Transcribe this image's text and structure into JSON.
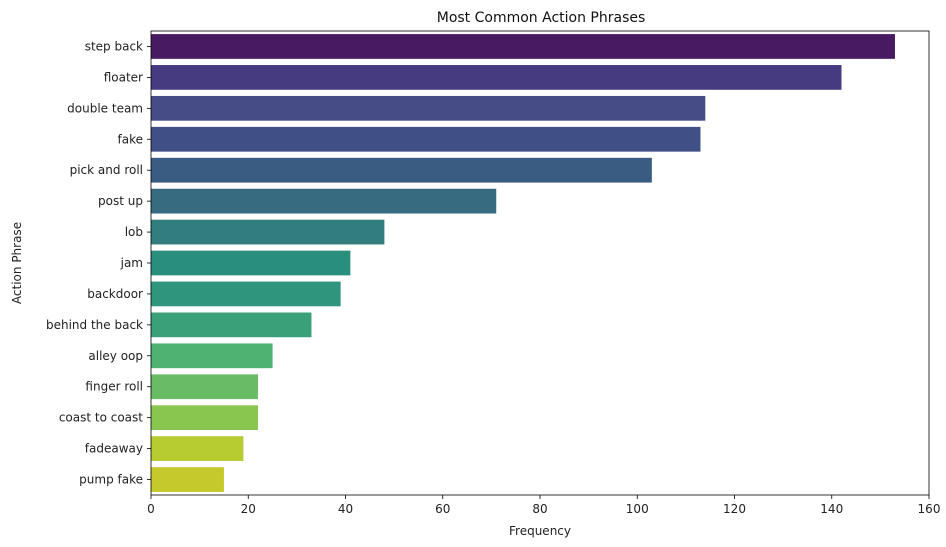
{
  "chart_data": {
    "type": "bar",
    "orientation": "horizontal",
    "title": "Most Common Action Phrases",
    "xlabel": "Frequency",
    "ylabel": "Action Phrase",
    "xlim": [
      0,
      160
    ],
    "xticks": [
      0,
      20,
      40,
      60,
      80,
      100,
      120,
      140,
      160
    ],
    "grid": false,
    "categories": [
      "step back",
      "floater",
      "double team",
      "fake",
      "pick and roll",
      "post up",
      "lob",
      "jam",
      "backdoor",
      "behind the back",
      "alley oop",
      "finger roll",
      "coast to coast",
      "fadeaway",
      "pump fake"
    ],
    "values": [
      153,
      142,
      114,
      113,
      103,
      71,
      48,
      41,
      39,
      33,
      25,
      22,
      22,
      19,
      15
    ],
    "colors": [
      "#471a61",
      "#463a80",
      "#464c85",
      "#414f87",
      "#3b5c82",
      "#366b80",
      "#327e7e",
      "#2a8e7e",
      "#2f957c",
      "#3aa07a",
      "#4fb172",
      "#6abb65",
      "#88c650",
      "#b6cc30",
      "#c6c92c"
    ]
  }
}
